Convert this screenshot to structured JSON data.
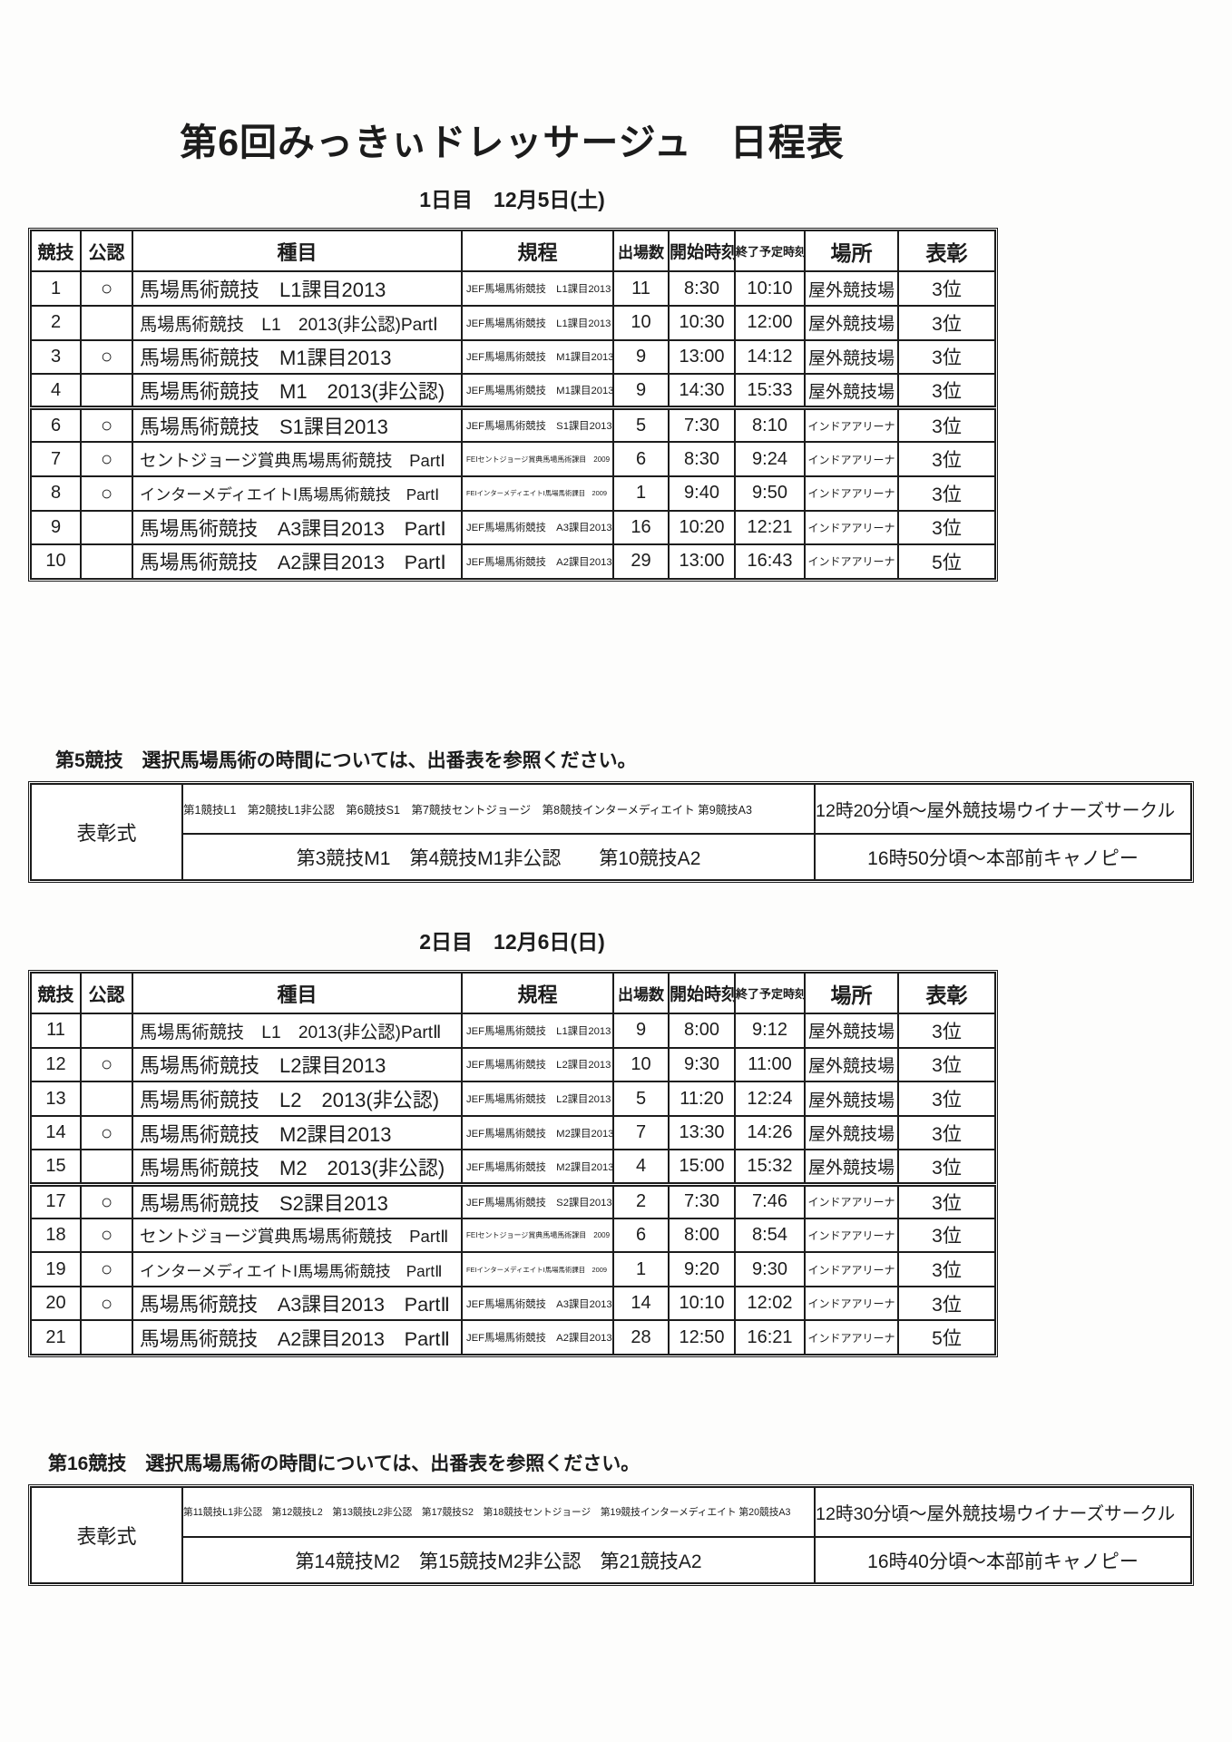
{
  "document": {
    "title": "第6回みっきぃドレッサージュ　日程表"
  },
  "table_columns": [
    "競技",
    "公認",
    "種目",
    "規程",
    "出場数",
    "開始時刻",
    "終了予定時刻",
    "場所",
    "表彰"
  ],
  "day1": {
    "heading": "1日目　12月5日(土)",
    "rows": [
      {
        "no": "1",
        "certified": "○",
        "event": "馬場馬術競技　L1課目2013",
        "regulation": "JEF馬場馬術競技　L1課目2013",
        "entries": "11",
        "start": "8:30",
        "end": "10:10",
        "venue": "屋外競技場",
        "award": "3位"
      },
      {
        "no": "2",
        "certified": "",
        "event": "馬場馬術競技　L1　2013(非公認)PartⅠ",
        "regulation": "JEF馬場馬術競技　L1課目2013",
        "entries": "10",
        "start": "10:30",
        "end": "12:00",
        "venue": "屋外競技場",
        "award": "3位"
      },
      {
        "no": "3",
        "certified": "○",
        "event": "馬場馬術競技　M1課目2013",
        "regulation": "JEF馬場馬術競技　M1課目2013",
        "entries": "9",
        "start": "13:00",
        "end": "14:12",
        "venue": "屋外競技場",
        "award": "3位"
      },
      {
        "no": "4",
        "certified": "",
        "event": "馬場馬術競技　M1　2013(非公認)",
        "regulation": "JEF馬場馬術競技　M1課目2013",
        "entries": "9",
        "start": "14:30",
        "end": "15:33",
        "venue": "屋外競技場",
        "award": "3位"
      },
      {
        "no": "6",
        "certified": "○",
        "event": "馬場馬術競技　S1課目2013",
        "regulation": "JEF馬場馬術競技　S1課目2013",
        "entries": "5",
        "start": "7:30",
        "end": "8:10",
        "venue": "インドアアリーナ",
        "award": "3位"
      },
      {
        "no": "7",
        "certified": "○",
        "event": "セントジョージ賞典馬場馬術競技　PartⅠ",
        "regulation": "FEIセントジョージ賞典馬場馬術課目　2009",
        "entries": "6",
        "start": "8:30",
        "end": "9:24",
        "venue": "インドアアリーナ",
        "award": "3位"
      },
      {
        "no": "8",
        "certified": "○",
        "event": "インターメディエイトⅠ馬場馬術競技　PartⅠ",
        "regulation": "FEIインターメディエイトⅠ馬場馬術課目　2009",
        "entries": "1",
        "start": "9:40",
        "end": "9:50",
        "venue": "インドアアリーナ",
        "award": "3位"
      },
      {
        "no": "9",
        "certified": "",
        "event": "馬場馬術競技　A3課目2013　PartⅠ",
        "regulation": "JEF馬場馬術競技　A3課目2013",
        "entries": "16",
        "start": "10:20",
        "end": "12:21",
        "venue": "インドアアリーナ",
        "award": "3位"
      },
      {
        "no": "10",
        "certified": "",
        "event": "馬場馬術競技　A2課目2013　PartⅠ",
        "regulation": "JEF馬場馬術競技　A2課目2013",
        "entries": "29",
        "start": "13:00",
        "end": "16:43",
        "venue": "インドアアリーナ",
        "award": "5位"
      }
    ],
    "note": "第5競技　選択馬場馬術の時間については、出番表を参照ください。",
    "ceremony": {
      "label": "表彰式",
      "rows": [
        {
          "events": "第1競技L1　第2競技L1非公認　第6競技S1　第7競技セントジョージ　第8競技インターメディエイト 第9競技A3",
          "time": "12時20分頃～屋外競技場ウイナーズサークル"
        },
        {
          "events": "第3競技M1　第4競技M1非公認　　第10競技A2",
          "time": "16時50分頃～本部前キャノピー"
        }
      ]
    }
  },
  "day2": {
    "heading": "2日目　12月6日(日)",
    "rows": [
      {
        "no": "11",
        "certified": "",
        "event": "馬場馬術競技　L1　2013(非公認)PartⅡ",
        "regulation": "JEF馬場馬術競技　L1課目2013",
        "entries": "9",
        "start": "8:00",
        "end": "9:12",
        "venue": "屋外競技場",
        "award": "3位"
      },
      {
        "no": "12",
        "certified": "○",
        "event": "馬場馬術競技　L2課目2013",
        "regulation": "JEF馬場馬術競技　L2課目2013",
        "entries": "10",
        "start": "9:30",
        "end": "11:00",
        "venue": "屋外競技場",
        "award": "3位"
      },
      {
        "no": "13",
        "certified": "",
        "event": "馬場馬術競技　L2　2013(非公認)",
        "regulation": "JEF馬場馬術競技　L2課目2013",
        "entries": "5",
        "start": "11:20",
        "end": "12:24",
        "venue": "屋外競技場",
        "award": "3位"
      },
      {
        "no": "14",
        "certified": "○",
        "event": "馬場馬術競技　M2課目2013",
        "regulation": "JEF馬場馬術競技　M2課目2013",
        "entries": "7",
        "start": "13:30",
        "end": "14:26",
        "venue": "屋外競技場",
        "award": "3位"
      },
      {
        "no": "15",
        "certified": "",
        "event": "馬場馬術競技　M2　2013(非公認)",
        "regulation": "JEF馬場馬術競技　M2課目2013",
        "entries": "4",
        "start": "15:00",
        "end": "15:32",
        "venue": "屋外競技場",
        "award": "3位"
      },
      {
        "no": "17",
        "certified": "○",
        "event": "馬場馬術競技　S2課目2013",
        "regulation": "JEF馬場馬術競技　S2課目2013",
        "entries": "2",
        "start": "7:30",
        "end": "7:46",
        "venue": "インドアアリーナ",
        "award": "3位"
      },
      {
        "no": "18",
        "certified": "○",
        "event": "セントジョージ賞典馬場馬術競技　PartⅡ",
        "regulation": "FEIセントジョージ賞典馬場馬術課目　2009",
        "entries": "6",
        "start": "8:00",
        "end": "8:54",
        "venue": "インドアアリーナ",
        "award": "3位"
      },
      {
        "no": "19",
        "certified": "○",
        "event": "インターメディエイトⅠ馬場馬術競技　PartⅡ",
        "regulation": "FEIインターメディエイトⅠ馬場馬術課目　2009",
        "entries": "1",
        "start": "9:20",
        "end": "9:30",
        "venue": "インドアアリーナ",
        "award": "3位"
      },
      {
        "no": "20",
        "certified": "○",
        "event": "馬場馬術競技　A3課目2013　PartⅡ",
        "regulation": "JEF馬場馬術競技　A3課目2013",
        "entries": "14",
        "start": "10:10",
        "end": "12:02",
        "venue": "インドアアリーナ",
        "award": "3位"
      },
      {
        "no": "21",
        "certified": "",
        "event": "馬場馬術競技　A2課目2013　PartⅡ",
        "regulation": "JEF馬場馬術競技　A2課目2013",
        "entries": "28",
        "start": "12:50",
        "end": "16:21",
        "venue": "インドアアリーナ",
        "award": "5位"
      }
    ],
    "note": "第16競技　選択馬場馬術の時間については、出番表を参照ください。",
    "ceremony": {
      "label": "表彰式",
      "rows": [
        {
          "events": "第11競技L1非公認　第12競技L2　第13競技L2非公認　第17競技S2　第18競技セントジョージ　第19競技インターメディエイト 第20競技A3",
          "time": "12時30分頃～屋外競技場ウイナーズサークル"
        },
        {
          "events": "第14競技M2　第15競技M2非公認　第21競技A2",
          "time": "16時40分頃～本部前キャノピー"
        }
      ]
    }
  }
}
